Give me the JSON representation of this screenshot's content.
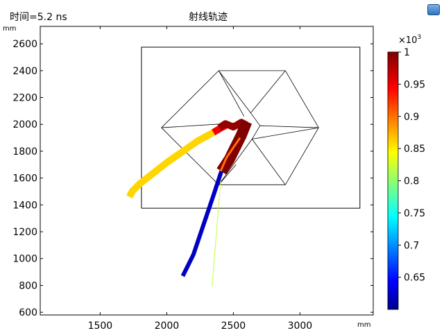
{
  "header": {
    "time_label": "时间=5.2 ns",
    "title": "射线轨迹",
    "y_unit": "mm",
    "x_unit": "mm"
  },
  "toolbar": {
    "icon": "window-toggle-icon"
  },
  "axes": {
    "x_ticks": [
      "1500",
      "2000",
      "2500",
      "3000"
    ],
    "y_ticks": [
      "2600",
      "2400",
      "2200",
      "2000",
      "1800",
      "1600",
      "1400",
      "1200",
      "1000",
      "800",
      "600"
    ]
  },
  "colorbar": {
    "multiplier_base": "×10",
    "multiplier_exp": "3",
    "ticks": [
      "1",
      "0.95",
      "0.9",
      "0.85",
      "0.8",
      "0.75",
      "0.7",
      "0.65"
    ]
  },
  "chart_data": {
    "type": "line",
    "title": "射线轨迹",
    "xlabel": "mm",
    "ylabel": "mm",
    "xlim": [
      1050,
      3550
    ],
    "ylim": [
      580,
      2730
    ],
    "colormap": "jet",
    "color_range": [
      600,
      1000
    ],
    "boundary": [
      [
        1810,
        1375
      ],
      [
        3450,
        1375
      ],
      [
        3450,
        2575
      ],
      [
        1810,
        2575
      ],
      [
        1810,
        1375
      ]
    ],
    "hexagon_edges": [
      [
        [
          1960,
          1975
        ],
        [
          2390,
          2400
        ]
      ],
      [
        [
          2390,
          2400
        ],
        [
          2890,
          2400
        ]
      ],
      [
        [
          2890,
          2400
        ],
        [
          3140,
          1975
        ]
      ],
      [
        [
          3140,
          1975
        ],
        [
          2890,
          1550
        ]
      ],
      [
        [
          2890,
          1550
        ],
        [
          2390,
          1550
        ]
      ],
      [
        [
          2390,
          1550
        ],
        [
          1960,
          1975
        ]
      ],
      [
        [
          2390,
          2400
        ],
        [
          2630,
          2085
        ]
      ],
      [
        [
          2890,
          2400
        ],
        [
          2630,
          2085
        ]
      ],
      [
        [
          2630,
          2085
        ],
        [
          2700,
          1990
        ]
      ],
      [
        [
          2700,
          1990
        ],
        [
          3140,
          1975
        ]
      ],
      [
        [
          2700,
          1990
        ],
        [
          2640,
          1890
        ]
      ],
      [
        [
          2640,
          1890
        ],
        [
          3140,
          1975
        ]
      ],
      [
        [
          2640,
          1890
        ],
        [
          2890,
          1550
        ]
      ],
      [
        [
          2640,
          1890
        ],
        [
          2390,
          1550
        ]
      ],
      [
        [
          1960,
          1975
        ],
        [
          2520,
          2010
        ]
      ],
      [
        [
          2390,
          1550
        ],
        [
          2520,
          1700
        ]
      ],
      [
        [
          2390,
          2400
        ],
        [
          2580,
          2060
        ]
      ]
    ],
    "rays": [
      {
        "value": 860,
        "width": 10,
        "points": [
          [
            1720,
            1460
          ],
          [
            1740,
            1500
          ],
          [
            1800,
            1560
          ],
          [
            2000,
            1715
          ],
          [
            2230,
            1875
          ],
          [
            2350,
            1940
          ]
        ]
      },
      {
        "value": 950,
        "width": 10,
        "points": [
          [
            2350,
            1940
          ],
          [
            2410,
            1975
          ],
          [
            2450,
            1995
          ]
        ]
      },
      {
        "value": 990,
        "width": 10,
        "points": [
          [
            2395,
            1975
          ],
          [
            2440,
            2005
          ],
          [
            2500,
            1980
          ],
          [
            2560,
            2015
          ],
          [
            2600,
            1995
          ]
        ]
      },
      {
        "value": 1000,
        "width": 16,
        "points": [
          [
            2600,
            2020
          ],
          [
            2560,
            1920
          ],
          [
            2470,
            1740
          ],
          [
            2410,
            1650
          ]
        ]
      },
      {
        "value": 900,
        "width": 3,
        "points": [
          [
            2550,
            1900
          ],
          [
            2450,
            1755
          ],
          [
            2390,
            1620
          ]
        ]
      },
      {
        "value": 820,
        "width": 1,
        "points": [
          [
            2410,
            1650
          ],
          [
            2340,
            790
          ]
        ]
      },
      {
        "value": 620,
        "width": 6,
        "points": [
          [
            2410,
            1650
          ],
          [
            2350,
            1470
          ],
          [
            2200,
            1030
          ],
          [
            2120,
            870
          ]
        ]
      }
    ]
  }
}
